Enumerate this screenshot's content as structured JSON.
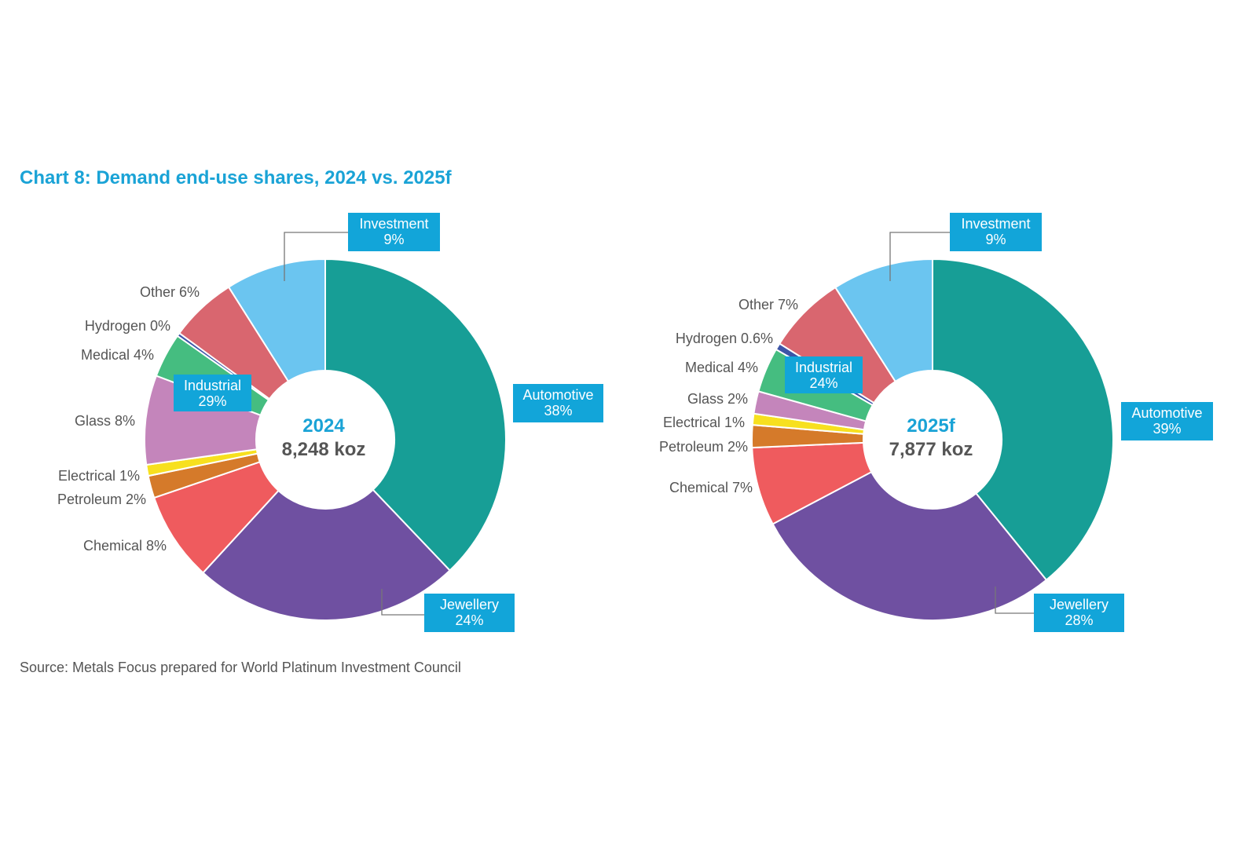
{
  "title": "Chart 8: Demand end-use shares, 2024 vs. 2025f",
  "source": "Source: Metals Focus prepared for World Platinum Investment Council",
  "colors": {
    "Automotive": "#179e96",
    "Jewellery": "#6f50a1",
    "Chemical": "#ef5b5e",
    "Petroleum": "#d57a2a",
    "Electrical": "#f7e01f",
    "Glass": "#c485bb",
    "Medical": "#45bd80",
    "Hydrogen": "#3d55a7",
    "Other": "#d9666f",
    "Investment": "#6bc5f0",
    "label_box": "#12a5d9"
  },
  "chart_data": [
    {
      "type": "donut",
      "center_label": "2024",
      "total_label": "8,248 koz",
      "slices": [
        {
          "name": "Automotive",
          "value": 38
        },
        {
          "name": "Jewellery",
          "value": 24
        },
        {
          "name": "Chemical",
          "value": 8
        },
        {
          "name": "Petroleum",
          "value": 2
        },
        {
          "name": "Electrical",
          "value": 1
        },
        {
          "name": "Glass",
          "value": 8
        },
        {
          "name": "Medical",
          "value": 4
        },
        {
          "name": "Hydrogen",
          "value": 0.3
        },
        {
          "name": "Other",
          "value": 6
        },
        {
          "name": "Investment",
          "value": 9
        }
      ],
      "labels": {
        "Automotive": "Automotive\n38%",
        "Jewellery": "Jewellery\n24%",
        "Chemical": "Chemical 8%",
        "Petroleum": "Petroleum 2%",
        "Electrical": "Electrical 1%",
        "Glass": "Glass 8%",
        "Medical": "Medical 4%",
        "Hydrogen": "Hydrogen 0%",
        "Other": "Other 6%",
        "Investment": "Investment\n9%",
        "Industrial": "Industrial\n29%"
      }
    },
    {
      "type": "donut",
      "center_label": "2025f",
      "total_label": "7,877 koz",
      "slices": [
        {
          "name": "Automotive",
          "value": 39
        },
        {
          "name": "Jewellery",
          "value": 28
        },
        {
          "name": "Chemical",
          "value": 7
        },
        {
          "name": "Petroleum",
          "value": 2
        },
        {
          "name": "Electrical",
          "value": 1
        },
        {
          "name": "Glass",
          "value": 2
        },
        {
          "name": "Medical",
          "value": 4
        },
        {
          "name": "Hydrogen",
          "value": 0.6
        },
        {
          "name": "Other",
          "value": 7
        },
        {
          "name": "Investment",
          "value": 9
        }
      ],
      "labels": {
        "Automotive": "Automotive\n39%",
        "Jewellery": "Jewellery\n28%",
        "Chemical": "Chemical 7%",
        "Petroleum": "Petroleum 2%",
        "Electrical": "Electrical 1%",
        "Glass": "Glass 2%",
        "Medical": "Medical 4%",
        "Hydrogen": "Hydrogen 0.6%",
        "Other": "Other 7%",
        "Investment": "Investment\n9%",
        "Industrial": "Industrial\n24%"
      }
    }
  ]
}
